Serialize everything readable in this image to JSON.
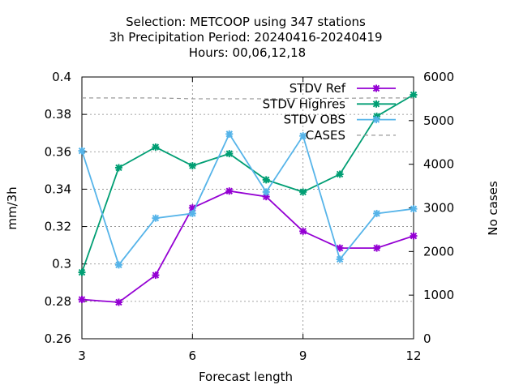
{
  "title_lines": [
    "Selection: METCOOP using   347 stations",
    "3h Precipitation   Period: 20240416-20240419",
    "Hours:  00,06,12,18"
  ],
  "chart_data": {
    "type": "line",
    "title": "Selection: METCOOP using   347 stations / 3h Precipitation   Period: 20240416-20240419 / Hours:  00,06,12,18",
    "xlabel": "Forecast length",
    "ylabel": "mm/3h",
    "y2label": "No cases",
    "xlim": [
      3,
      12
    ],
    "ylim": [
      0.26,
      0.4
    ],
    "y2lim": [
      0,
      6000
    ],
    "x_ticks": [
      3,
      6,
      9,
      12
    ],
    "y_ticks": [
      "0.26",
      "0.28",
      "0.3",
      "0.32",
      "0.34",
      "0.36",
      "0.38",
      "0.4"
    ],
    "y2_ticks": [
      "0",
      "1000",
      "2000",
      "3000",
      "4000",
      "5000",
      "6000"
    ],
    "grid": true,
    "legend_position": "top-right",
    "x": [
      3,
      4,
      5,
      6,
      7,
      8,
      9,
      10,
      11,
      12
    ],
    "series": [
      {
        "name": "STDV Ref",
        "color": "#9400d3",
        "axis": "y",
        "values": [
          0.281,
          0.2795,
          0.294,
          0.33,
          0.339,
          0.336,
          0.3175,
          0.3085,
          0.3085,
          0.315
        ]
      },
      {
        "name": "STDV Highres",
        "color": "#009e73",
        "axis": "y",
        "values": [
          0.2955,
          0.3515,
          0.3625,
          0.3525,
          0.359,
          0.345,
          0.3385,
          0.348,
          0.379,
          0.3905
        ]
      },
      {
        "name": "STDV OBS",
        "color": "#56b4e9",
        "axis": "y",
        "values": [
          0.3605,
          0.2995,
          0.3245,
          0.327,
          0.3695,
          0.3385,
          0.3685,
          0.3025,
          0.327,
          0.3295
        ]
      },
      {
        "name": "CASES",
        "color": "#999999",
        "axis": "y2",
        "dashed": true,
        "values": [
          5520,
          5520,
          5520,
          5500,
          5500,
          5500,
          5510,
          5510,
          5520,
          5520
        ]
      }
    ]
  }
}
